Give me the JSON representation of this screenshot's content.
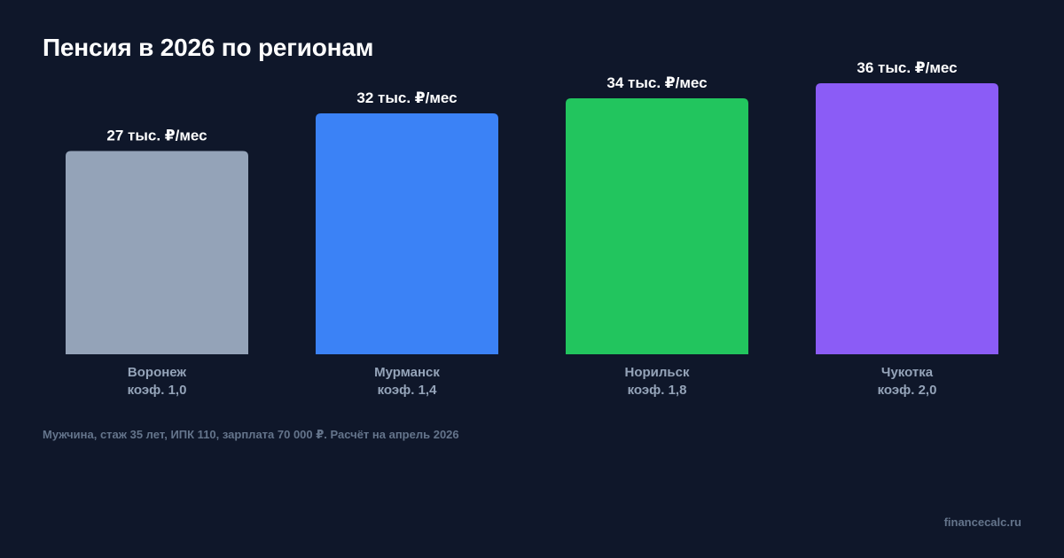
{
  "title": "Пенсия в 2026 по регионам",
  "footnote": "Мужчина, стаж 35 лет, ИПК 110, зарплата 70 000 ₽. Расчёт на апрель 2026",
  "brand": "financecalc.ru",
  "chart_data": {
    "type": "bar",
    "title": "Пенсия в 2026 по регионам",
    "categories": [
      "Воронеж",
      "Мурманск",
      "Норильск",
      "Чукотка"
    ],
    "sublabels": [
      "коэф. 1,0",
      "коэф. 1,4",
      "коэф. 1,8",
      "коэф. 2,0"
    ],
    "values": [
      27,
      32,
      34,
      36
    ],
    "value_labels": [
      "27 тыс. ₽/мес",
      "32 тыс. ₽/мес",
      "34 тыс. ₽/мес",
      "36 тыс. ₽/мес"
    ],
    "colors": [
      "#94a3b8",
      "#3b82f6",
      "#22c55e",
      "#8b5cf6"
    ],
    "ylim": [
      0,
      40
    ],
    "grid": false,
    "background": "#0f172a"
  }
}
